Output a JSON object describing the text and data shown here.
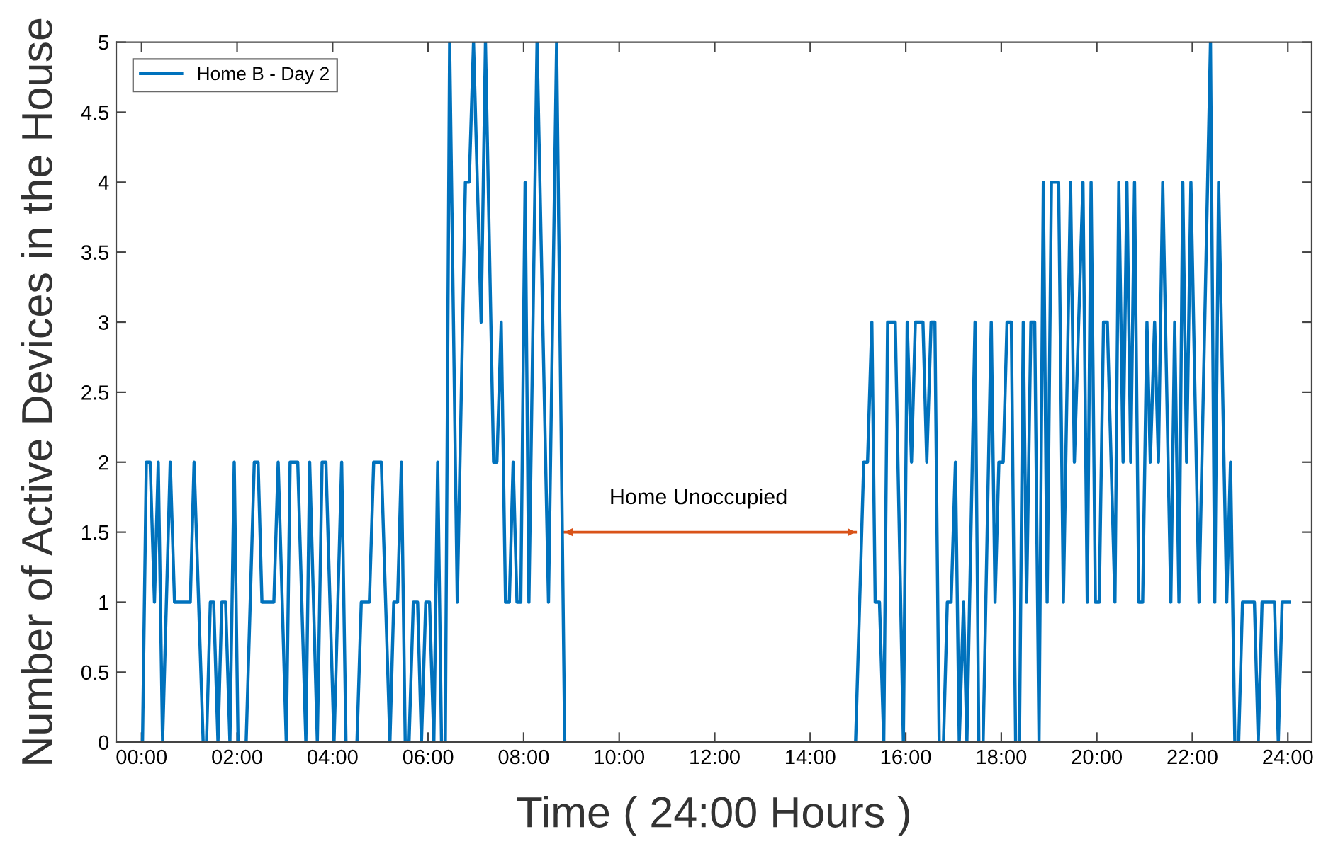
{
  "chart_data": {
    "type": "line",
    "xlabel": "Time ( 24:00 Hours )",
    "ylabel": "Number of Active Devices in the House",
    "xlim": [
      -0.53,
      24.5
    ],
    "ylim": [
      0,
      5
    ],
    "xticks": [
      {
        "value": 0,
        "label": "00:00"
      },
      {
        "value": 2,
        "label": "02:00"
      },
      {
        "value": 4,
        "label": "04:00"
      },
      {
        "value": 6,
        "label": "06:00"
      },
      {
        "value": 8,
        "label": "08:00"
      },
      {
        "value": 10,
        "label": "10:00"
      },
      {
        "value": 12,
        "label": "12:00"
      },
      {
        "value": 14,
        "label": "14:00"
      },
      {
        "value": 16,
        "label": "16:00"
      },
      {
        "value": 18,
        "label": "18:00"
      },
      {
        "value": 20,
        "label": "20:00"
      },
      {
        "value": 22,
        "label": "22:00"
      },
      {
        "value": 24,
        "label": "24:00"
      }
    ],
    "yticks": [
      0,
      0.5,
      1,
      1.5,
      2,
      2.5,
      3,
      3.5,
      4,
      4.5,
      5
    ],
    "legend": "top left",
    "grid": false,
    "marker": "none",
    "line_style": "solid",
    "annotations": [
      "Home Unoccupied"
    ],
    "series": [
      {
        "type": "line",
        "color": "#d95319",
        "marker": "triangle",
        "x": [
          8.86,
          14.95
        ],
        "values": [
          1.5,
          1.5
        ]
      },
      {
        "name": "Home B - Day 2",
        "color": "#0072bd",
        "x": [
          0.02,
          0.1,
          0.18,
          0.27,
          0.35,
          0.44,
          0.6,
          0.69,
          1.02,
          1.1,
          1.29,
          1.36,
          1.44,
          1.51,
          1.6,
          1.68,
          1.76,
          1.85,
          1.94,
          2.02,
          2.19,
          2.36,
          2.44,
          2.52,
          2.77,
          2.86,
          3.03,
          3.11,
          3.27,
          3.44,
          3.52,
          3.68,
          3.78,
          3.86,
          4.03,
          4.19,
          4.28,
          4.51,
          4.6,
          4.77,
          4.86,
          5.02,
          5.2,
          5.28,
          5.36,
          5.44,
          5.52,
          5.6,
          5.69,
          5.78,
          5.86,
          5.95,
          6.03,
          6.12,
          6.2,
          6.28,
          6.36,
          6.45,
          6.61,
          6.78,
          6.86,
          6.95,
          7.11,
          7.2,
          7.37,
          7.44,
          7.53,
          7.62,
          7.7,
          7.78,
          7.86,
          7.94,
          8.03,
          8.11,
          8.28,
          8.52,
          8.69,
          8.86,
          14.95,
          15.12,
          15.2,
          15.29,
          15.36,
          15.45,
          15.54,
          15.62,
          15.78,
          15.95,
          16.03,
          16.12,
          16.2,
          16.36,
          16.44,
          16.53,
          16.61,
          16.7,
          16.79,
          16.87,
          16.95,
          17.04,
          17.12,
          17.21,
          17.28,
          17.45,
          17.53,
          17.62,
          17.79,
          17.87,
          17.95,
          18.04,
          18.12,
          18.21,
          18.3,
          18.38,
          18.46,
          18.53,
          18.62,
          18.7,
          18.79,
          18.88,
          18.96,
          19.05,
          19.2,
          19.3,
          19.45,
          19.53,
          19.71,
          19.8,
          19.88,
          19.97,
          20.05,
          20.14,
          20.22,
          20.38,
          20.46,
          20.55,
          20.63,
          20.71,
          20.79,
          20.88,
          20.96,
          21.05,
          21.12,
          21.21,
          21.29,
          21.38,
          21.55,
          21.63,
          21.72,
          21.8,
          21.88,
          21.97,
          22.14,
          22.38,
          22.47,
          22.55,
          22.72,
          22.8,
          22.89,
          22.97,
          23.05,
          23.3,
          23.38,
          23.46,
          23.72,
          23.8,
          23.88,
          24.03
        ],
        "values": [
          0,
          2,
          2,
          1,
          2,
          0,
          2,
          1,
          1,
          2,
          0,
          0,
          1,
          1,
          0,
          1,
          1,
          0,
          2,
          0,
          0,
          2,
          2,
          1,
          1,
          2,
          0,
          2,
          2,
          0,
          2,
          0,
          2,
          2,
          0,
          2,
          0,
          0,
          1,
          1,
          2,
          2,
          0,
          1,
          1,
          2,
          0,
          0,
          1,
          1,
          0,
          1,
          1,
          0,
          2,
          0,
          0,
          5,
          1,
          4,
          4,
          5,
          3,
          5,
          2,
          2,
          3,
          1,
          1,
          2,
          1,
          1,
          4,
          1,
          5,
          1,
          5,
          0,
          0,
          2,
          2,
          3,
          1,
          1,
          0,
          3,
          3,
          0,
          3,
          2,
          3,
          3,
          2,
          3,
          3,
          0,
          0,
          1,
          1,
          2,
          0,
          1,
          0,
          3,
          0,
          0,
          3,
          1,
          2,
          2,
          3,
          3,
          0,
          0,
          3,
          1,
          3,
          3,
          0,
          4,
          1,
          4,
          4,
          1,
          4,
          2,
          4,
          1,
          4,
          1,
          1,
          3,
          3,
          1,
          4,
          2,
          4,
          2,
          4,
          1,
          1,
          3,
          2,
          3,
          2,
          4,
          1,
          3,
          1,
          4,
          2,
          4,
          1,
          5,
          1,
          4,
          1,
          2,
          0,
          0,
          1,
          1,
          0,
          1,
          1,
          0,
          1,
          1
        ]
      }
    ]
  }
}
